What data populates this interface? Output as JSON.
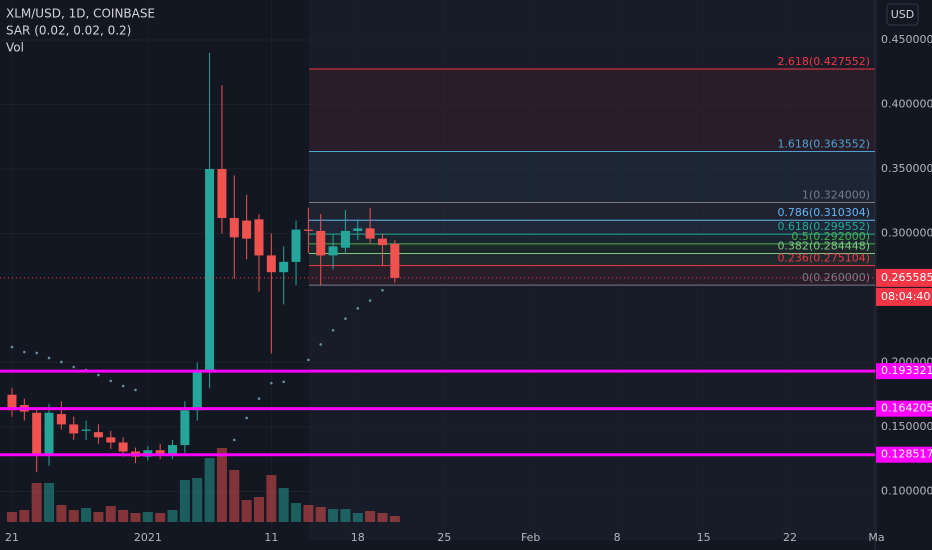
{
  "chart_data": {
    "type": "candlestick",
    "title": "XLM/USD, 1D, COINBASE",
    "indicators": [
      "SAR (0.02, 0.02, 0.2)",
      "Vol"
    ],
    "currency_button": "USD",
    "up_color": "#26a69a",
    "down_color": "#ef5350",
    "x": [
      0,
      1,
      2,
      3,
      4,
      5,
      6,
      7,
      8,
      9,
      10,
      11,
      12,
      13,
      14,
      15,
      16,
      17,
      18,
      19,
      20,
      21,
      22,
      23,
      24,
      25,
      26,
      27,
      28,
      29,
      30,
      31
    ],
    "open": [
      0.175,
      0.167,
      0.161,
      0.128,
      0.16,
      0.152,
      0.147,
      0.146,
      0.142,
      0.138,
      0.131,
      0.127,
      0.132,
      0.128,
      0.136,
      0.163,
      0.193,
      0.35,
      0.312,
      0.31,
      0.311,
      0.283,
      0.27,
      0.278,
      0.303,
      0.302,
      0.283,
      0.289,
      0.302,
      0.304,
      0.296,
      0.292
    ],
    "high": [
      0.18,
      0.172,
      0.165,
      0.168,
      0.17,
      0.158,
      0.155,
      0.152,
      0.147,
      0.142,
      0.134,
      0.135,
      0.137,
      0.14,
      0.17,
      0.2,
      0.44,
      0.415,
      0.345,
      0.33,
      0.315,
      0.3,
      0.29,
      0.31,
      0.32,
      0.315,
      0.3,
      0.318,
      0.31,
      0.32,
      0.3,
      0.295
    ],
    "low": [
      0.158,
      0.155,
      0.115,
      0.12,
      0.148,
      0.14,
      0.14,
      0.137,
      0.133,
      0.127,
      0.122,
      0.124,
      0.125,
      0.125,
      0.13,
      0.155,
      0.18,
      0.3,
      0.265,
      0.28,
      0.255,
      0.207,
      0.245,
      0.26,
      0.285,
      0.26,
      0.272,
      0.285,
      0.295,
      0.292,
      0.275,
      0.262
    ],
    "close": [
      0.163,
      0.162,
      0.128,
      0.161,
      0.152,
      0.145,
      0.148,
      0.142,
      0.138,
      0.131,
      0.127,
      0.132,
      0.128,
      0.136,
      0.163,
      0.193,
      0.35,
      0.312,
      0.297,
      0.296,
      0.283,
      0.27,
      0.278,
      0.303,
      0.302,
      0.283,
      0.29,
      0.302,
      0.304,
      0.296,
      0.291,
      0.265585
    ],
    "sar": {
      "color": "#6a8fa0",
      "values": [
        0.212,
        0.2081,
        0.2074,
        0.2035,
        0.2004,
        0.1965,
        0.1942,
        0.1903,
        0.1857,
        0.1818,
        0.1787,
        null,
        null,
        null,
        null,
        null,
        null,
        0.128,
        0.14,
        0.157,
        0.172,
        0.184,
        0.185,
        0.193,
        0.202,
        0.214,
        0.225,
        0.234,
        0.242,
        0.248,
        0.256,
        null
      ]
    },
    "volume": {
      "lim": [
        0,
        522
      ],
      "values": [
        10,
        12,
        39,
        39,
        17,
        12,
        14,
        10,
        16,
        12,
        9,
        10,
        9,
        12,
        42,
        44,
        64,
        74,
        52,
        22,
        25,
        47,
        34,
        19,
        17,
        15,
        13,
        13,
        9,
        11,
        9,
        6
      ]
    },
    "xlim": [
      -0.97,
      69.88
    ],
    "xticks": [
      {
        "value": 0,
        "label": "21"
      },
      {
        "value": 11,
        "label": "2021"
      },
      {
        "value": 21,
        "label": "11"
      },
      {
        "value": 28,
        "label": "18"
      },
      {
        "value": 35,
        "label": "25"
      },
      {
        "value": 42,
        "label": "Feb"
      },
      {
        "value": 49,
        "label": "8"
      },
      {
        "value": 56,
        "label": "15"
      },
      {
        "value": 63,
        "label": "22"
      },
      {
        "value": 70,
        "label": "Ma"
      }
    ],
    "ylim": [
      0.0624,
      0.481
    ],
    "yticks": [
      {
        "value": 0.45,
        "label": "0.450000"
      },
      {
        "value": 0.4,
        "label": "0.400000"
      },
      {
        "value": 0.35,
        "label": "0.350000"
      },
      {
        "value": 0.3,
        "label": "0.300000"
      },
      {
        "value": 0.2,
        "label": "0.200000"
      },
      {
        "value": 0.15,
        "label": "0.150000"
      },
      {
        "value": 0.1,
        "label": "0.100000"
      }
    ],
    "grid": true,
    "fib_levels": [
      {
        "value": 0.427552,
        "label": "2.618(0.427552)",
        "color": "#f23645"
      },
      {
        "value": 0.363552,
        "label": "1.618(0.363552)",
        "color": "#4fa3d1"
      },
      {
        "value": 0.324,
        "label": "1(0.324000)",
        "color": "#787b86"
      },
      {
        "value": 0.310304,
        "label": "0.786(0.310304)",
        "color": "#64b5f6"
      },
      {
        "value": 0.299552,
        "label": "0.618(0.299552)",
        "color": "#22ab94"
      },
      {
        "value": 0.292,
        "label": "0.5(0.292000)",
        "color": "#4caf50"
      },
      {
        "value": 0.284448,
        "label": "0.382(0.284448)",
        "color": "#81c784"
      },
      {
        "value": 0.275104,
        "label": "0.236(0.275104)",
        "color": "#f23645"
      },
      {
        "value": 0.26,
        "label": "0(0.260000)",
        "color": "#787b86"
      }
    ],
    "hlines": [
      {
        "value": 0.193321,
        "color": "#ff00ff"
      },
      {
        "value": 0.164205,
        "color": "#ff00ff"
      },
      {
        "value": 0.128517,
        "color": "#ff00ff"
      }
    ],
    "last_price": {
      "value": 0.265585,
      "color": "#f23645"
    },
    "countdown": "08:04:40"
  }
}
